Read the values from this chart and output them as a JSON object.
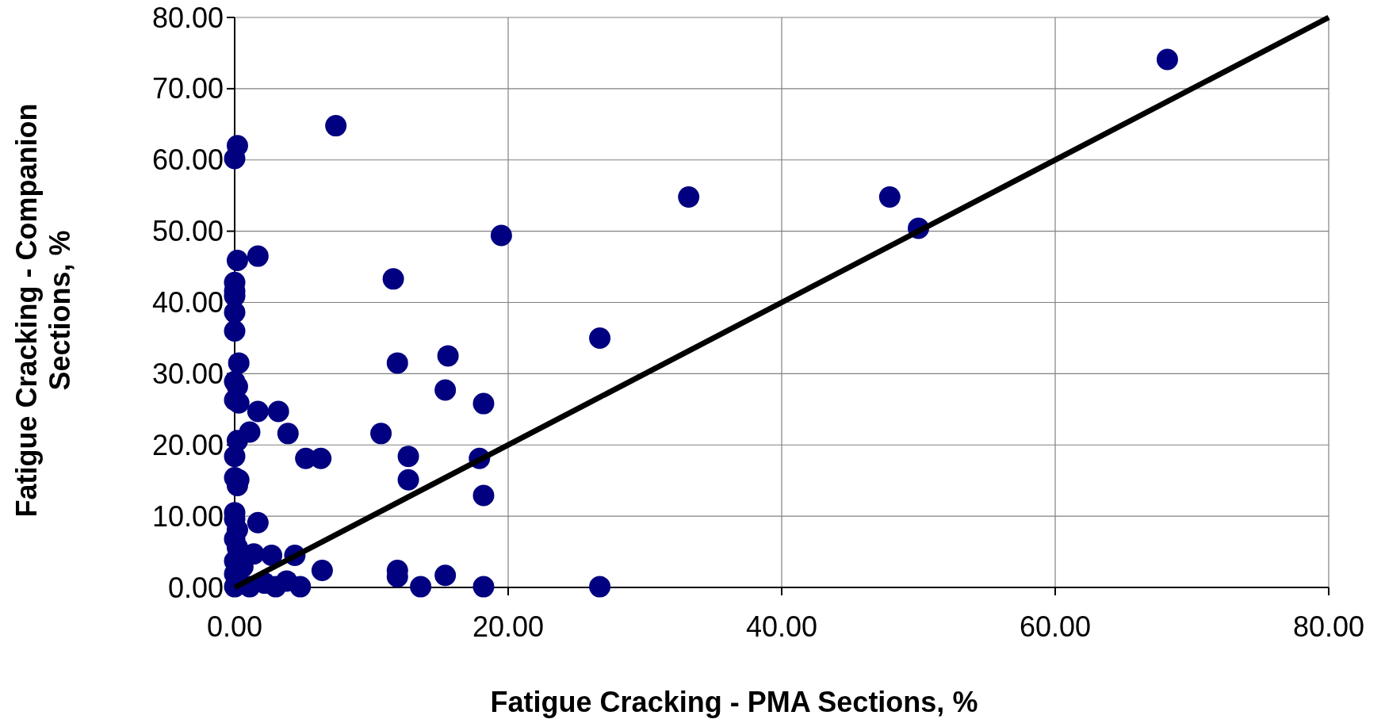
{
  "chart_data": {
    "type": "scatter",
    "xlabel": "Fatigue Cracking - PMA Sections, %",
    "ylabel": "Fatigue Cracking - Companion Sections, %",
    "xlim": [
      0,
      80
    ],
    "ylim": [
      0,
      80
    ],
    "xticks": [
      {
        "value": 0,
        "label": "0.00"
      },
      {
        "value": 20,
        "label": "20.00"
      },
      {
        "value": 40,
        "label": "40.00"
      },
      {
        "value": 60,
        "label": "60.00"
      },
      {
        "value": 80,
        "label": "80.00"
      }
    ],
    "yticks": [
      {
        "value": 0,
        "label": "0.00"
      },
      {
        "value": 10,
        "label": "10.00"
      },
      {
        "value": 20,
        "label": "20.00"
      },
      {
        "value": 30,
        "label": "30.00"
      },
      {
        "value": 40,
        "label": "40.00"
      },
      {
        "value": 50,
        "label": "50.00"
      },
      {
        "value": 60,
        "label": "60.00"
      },
      {
        "value": 70,
        "label": "70.00"
      },
      {
        "value": 80,
        "label": "80.00"
      }
    ],
    "grid": true,
    "series": [
      {
        "color": "#000080",
        "marker": "circle",
        "x": [
          68.2,
          7.4,
          0.2,
          0,
          33.2,
          47.9,
          50.0,
          19.5,
          1.7,
          0.2,
          11.6,
          0,
          0,
          0,
          0,
          0,
          26.7,
          15.6,
          0.3,
          11.9,
          0,
          0.2,
          15.4,
          0,
          0.3,
          18.2,
          1.7,
          3.2,
          1.1,
          3.9,
          10.7,
          0.2,
          0,
          5.2,
          6.3,
          12.7,
          17.9,
          0,
          0.3,
          0.2,
          12.7,
          18.2,
          0,
          0,
          1.7,
          0.2,
          0,
          0.2,
          1.4,
          2.7,
          4.4,
          0,
          0.6,
          6.4,
          11.9,
          11.9,
          15.4,
          0,
          2.2,
          3.8,
          13.6,
          18.2,
          26.7,
          4.8,
          3.0,
          0,
          1.1
        ],
        "values": [
          74.1,
          64.8,
          62.0,
          60.2,
          54.8,
          54.8,
          50.4,
          49.4,
          46.5,
          45.9,
          43.3,
          42.8,
          41.6,
          40.9,
          38.6,
          36.0,
          35.0,
          32.5,
          31.5,
          31.5,
          28.9,
          28.2,
          27.7,
          26.3,
          25.9,
          25.8,
          24.7,
          24.7,
          21.8,
          21.6,
          21.6,
          20.6,
          18.4,
          18.1,
          18.1,
          18.4,
          18.1,
          15.4,
          15.1,
          14.3,
          15.1,
          12.9,
          10.5,
          9.6,
          9.1,
          8.1,
          6.8,
          5.6,
          4.7,
          4.5,
          4.5,
          3.7,
          2.9,
          2.4,
          2.4,
          1.5,
          1.7,
          1.9,
          0.6,
          0.9,
          0.1,
          0.1,
          0.1,
          0.1,
          0.1,
          0.1,
          0.1
        ]
      },
      {
        "type": "line",
        "color": "#000000",
        "x": [
          0,
          80
        ],
        "values": [
          0,
          80
        ],
        "line_style": "solid"
      }
    ]
  }
}
